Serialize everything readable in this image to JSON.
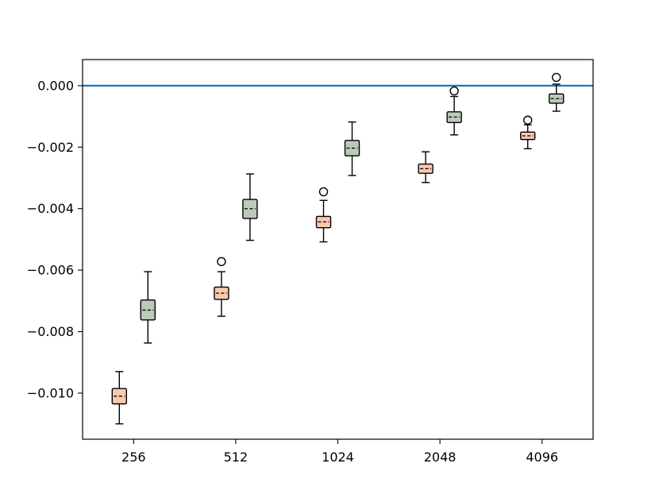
{
  "chart_data": {
    "type": "boxplot",
    "categories": [
      "256",
      "512",
      "1024",
      "2048",
      "4096"
    ],
    "ylim": [
      -0.0115,
      0.00085
    ],
    "yticks": [
      {
        "value": 0.0,
        "label": "0.000"
      },
      {
        "value": -0.002,
        "label": "−0.002"
      },
      {
        "value": -0.004,
        "label": "−0.004"
      },
      {
        "value": -0.006,
        "label": "−0.006"
      },
      {
        "value": -0.008,
        "label": "−0.008"
      },
      {
        "value": -0.01,
        "label": "−0.010"
      }
    ],
    "reference_line": {
      "value": 0.0,
      "color": "#1f77b4"
    },
    "grid": false,
    "colors": {
      "series_a": "#f9c9ad",
      "series_b": "#bccab9",
      "edge": "#000000"
    },
    "series": [
      {
        "color": "#f9c9ad",
        "boxes": [
          {
            "whislo": -0.011,
            "q1": -0.01035,
            "med": -0.0101,
            "q3": -0.00985,
            "whishi": -0.0093,
            "fliers": []
          },
          {
            "whislo": -0.0075,
            "q1": -0.00695,
            "med": -0.00675,
            "q3": -0.00655,
            "whishi": -0.00605,
            "fliers": [
              -0.00572
            ]
          },
          {
            "whislo": -0.00508,
            "q1": -0.00462,
            "med": -0.00443,
            "q3": -0.00425,
            "whishi": -0.00373,
            "fliers": [
              -0.00345
            ]
          },
          {
            "whislo": -0.00315,
            "q1": -0.00285,
            "med": -0.0027,
            "q3": -0.00255,
            "whishi": -0.00215,
            "fliers": []
          },
          {
            "whislo": -0.00205,
            "q1": -0.00175,
            "med": -0.00163,
            "q3": -0.00151,
            "whishi": -0.00127,
            "fliers": [
              -0.00112
            ]
          }
        ]
      },
      {
        "color": "#bccab9",
        "boxes": [
          {
            "whislo": -0.00837,
            "q1": -0.00762,
            "med": -0.0073,
            "q3": -0.00697,
            "whishi": -0.00605,
            "fliers": []
          },
          {
            "whislo": -0.00503,
            "q1": -0.00432,
            "med": -0.004,
            "q3": -0.0037,
            "whishi": -0.00287,
            "fliers": []
          },
          {
            "whislo": -0.00292,
            "q1": -0.00228,
            "med": -0.00203,
            "q3": -0.00178,
            "whishi": -0.00118,
            "fliers": []
          },
          {
            "whislo": -0.0016,
            "q1": -0.0012,
            "med": -0.00102,
            "q3": -0.00085,
            "whishi": -0.00035,
            "fliers": [
              -0.00017
            ]
          },
          {
            "whislo": -0.00083,
            "q1": -0.00057,
            "med": -0.00042,
            "q3": -0.00027,
            "whishi": 5e-05,
            "fliers": [
              0.00027
            ]
          }
        ]
      }
    ]
  }
}
